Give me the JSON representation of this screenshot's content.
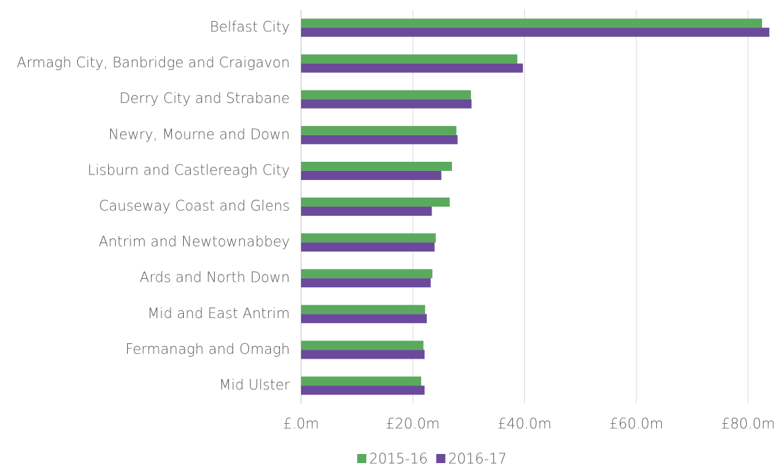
{
  "chart_data": {
    "type": "bar",
    "orientation": "horizontal",
    "categories": [
      "Belfast City",
      "Armagh City, Banbridge and Craigavon",
      "Derry City and Strabane",
      "Newry, Mourne and Down",
      "Lisburn and Castlereagh City",
      "Causeway Coast and Glens",
      "Antrim and Newtownabbey",
      "Ards and North Down",
      "Mid and East Antrim",
      "Fermanagh and Omagh",
      "Mid Ulster"
    ],
    "series": [
      {
        "name": "2015-16",
        "color": "#5aaa5e",
        "values": [
          82.5,
          38.7,
          30.4,
          27.8,
          27.0,
          26.6,
          24.1,
          23.5,
          22.2,
          21.9,
          21.5
        ]
      },
      {
        "name": "2016-17",
        "color": "#6b4a9b",
        "values": [
          83.8,
          39.7,
          30.5,
          28.0,
          25.1,
          23.4,
          23.9,
          23.2,
          22.5,
          22.1,
          22.1
        ]
      }
    ],
    "xlim": [
      0,
      80
    ],
    "xticks": [
      {
        "value": 0,
        "label": "£.0m"
      },
      {
        "value": 20,
        "label": "£20.0m"
      },
      {
        "value": 40,
        "label": "£40.0m"
      },
      {
        "value": 60,
        "label": "£60.0m"
      },
      {
        "value": 80,
        "label": "£80.0m"
      }
    ],
    "grid": true,
    "legend": "bottom"
  }
}
